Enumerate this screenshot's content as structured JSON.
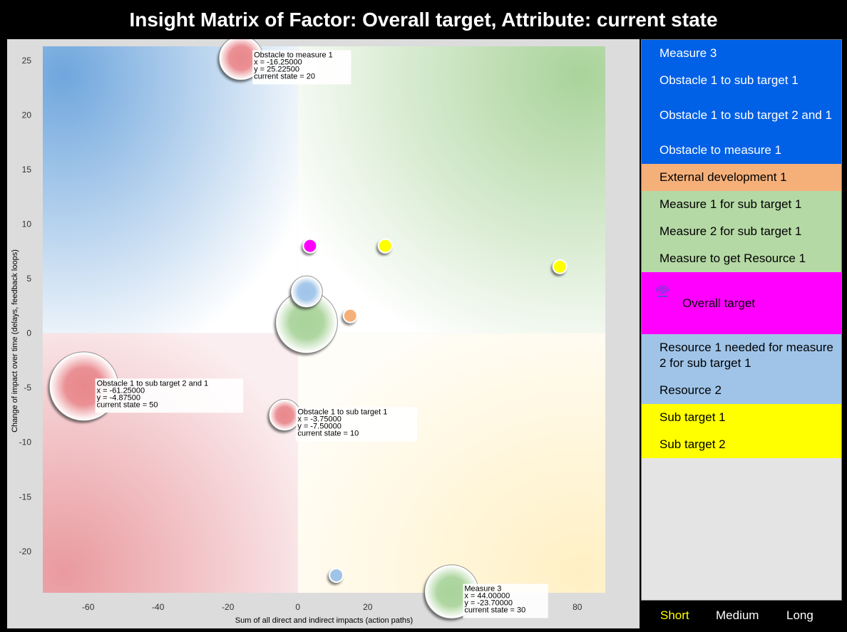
{
  "title": "Insight Matrix of Factor: Overall target, Attribute: current state",
  "chart_data": {
    "type": "scatter",
    "subtype": "bubble",
    "xlabel": "Sum of all direct and indirect impacts (action paths)",
    "ylabel": "Change of impact over time (delays, feedback loops)",
    "xlim": [
      -73,
      88
    ],
    "ylim": [
      -23.8,
      26.3
    ],
    "xticks": [
      -60,
      -40,
      -20,
      0,
      20,
      40,
      60,
      80
    ],
    "yticks": [
      -20,
      -15,
      -10,
      -5,
      0,
      5,
      10,
      15,
      20,
      25
    ],
    "grid": false,
    "quadrant_colors": {
      "top_left": "#6fa6dd",
      "top_right": "#a9d39a",
      "bottom_left": "#e99a9f",
      "bottom_right": "#fff0c4"
    },
    "points": [
      {
        "name": "Obstacle to measure 1",
        "x": -16.25,
        "y": 25.225,
        "current_state": 20,
        "color": "#e8888c",
        "labeled": true,
        "label_lines": [
          "Obstacle to measure 1",
          "x = -16.25000",
          "y = 25.22500",
          "current state = 20"
        ]
      },
      {
        "name": "Obstacle 1 to sub target 2 and 1",
        "x": -61.25,
        "y": -4.875,
        "current_state": 50,
        "color": "#e8888c",
        "labeled": true,
        "label_lines": [
          "Obstacle 1 to sub target 2 and 1",
          "x = -61.25000",
          "y = -4.87500",
          "current state = 50"
        ]
      },
      {
        "name": "Obstacle 1 to sub target 1",
        "x": -3.75,
        "y": -7.5,
        "current_state": 10,
        "color": "#e8888c",
        "labeled": true,
        "label_lines": [
          "Obstacle 1 to sub target 1",
          "x = -3.75000",
          "y = -7.50000",
          "current state = 10"
        ]
      },
      {
        "name": "Measure 3",
        "x": 44.0,
        "y": -23.7,
        "current_state": 30,
        "color": "#a9d39a",
        "labeled": true,
        "label_lines": [
          "Measure 3",
          "x = 44.00000",
          "y = -23.70000",
          "current state = 30"
        ]
      },
      {
        "name": "Overall target",
        "x": 3.5,
        "y": 8.0,
        "current_state": 2,
        "color": "#ff00ff",
        "labeled": false
      },
      {
        "name": "Sub target 1",
        "x": 25.0,
        "y": 8.0,
        "current_state": 2,
        "color": "#ffff00",
        "labeled": false
      },
      {
        "name": "Sub target 2",
        "x": 75.0,
        "y": 6.1,
        "current_state": 2,
        "color": "#ffff00",
        "labeled": false
      },
      {
        "name": "Resource 2",
        "x": 2.5,
        "y": 3.8,
        "current_state": 10,
        "color": "#9fc4e8",
        "labeled": false
      },
      {
        "name": "Measure 1 for sub target 1",
        "x": 2.5,
        "y": 1.0,
        "current_state": 40,
        "color": "#a9d39a",
        "labeled": false
      },
      {
        "name": "External development 1",
        "x": 15.0,
        "y": 1.6,
        "current_state": 2,
        "color": "#f5b07a",
        "labeled": false
      },
      {
        "name": "Resource 1 needed for measure 2 for sub target 1",
        "x": 11.0,
        "y": -22.2,
        "current_state": 2,
        "color": "#9fc4e8",
        "labeled": false
      }
    ]
  },
  "legend": {
    "items": [
      {
        "label": "Measure 3",
        "color": "#0060e6"
      },
      {
        "label": "Obstacle 1 to sub target 1",
        "color": "#0060e6"
      },
      {
        "label": "Obstacle 1 to sub target 2 and 1",
        "color": "#0060e6"
      },
      {
        "label": "Obstacle to measure 1",
        "color": "#0060e6"
      },
      {
        "label": "External development 1",
        "color": "#f5b07a"
      },
      {
        "label": "Measure 1 for sub target 1",
        "color": "#b5d9a5"
      },
      {
        "label": "Measure 2 for sub target 1",
        "color": "#b5d9a5"
      },
      {
        "label": "Measure to get Resource 1",
        "color": "#b5d9a5"
      },
      {
        "label": "Overall target",
        "color": "#ff00ff",
        "icon": "fingerprint-icon"
      },
      {
        "label": "Resource 1 needed for measure 2 for sub target 1",
        "color": "#9fc4e8"
      },
      {
        "label": "Resource 2",
        "color": "#9fc4e8"
      },
      {
        "label": "Sub target 1",
        "color": "#ffff00"
      },
      {
        "label": "Sub target 2",
        "color": "#ffff00"
      }
    ]
  },
  "time_horizon": {
    "options": [
      "Short",
      "Medium",
      "Long"
    ],
    "selected": "Short",
    "selected_color": "#ffff00"
  }
}
